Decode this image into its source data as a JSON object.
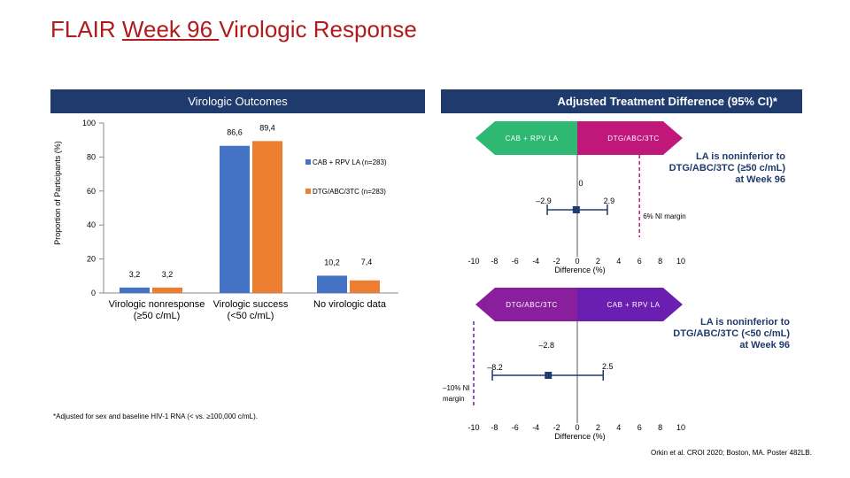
{
  "title": {
    "prefix": "FLAIR ",
    "underlined": "Week 96 ",
    "suffix": "Virologic Response"
  },
  "left_panel": {
    "header": "Virologic Outcomes"
  },
  "right_panel": {
    "header": "Adjusted Treatment Difference (95% CI)*"
  },
  "chart_data": [
    {
      "type": "bar",
      "ylabel": "Proportion of Participants (%)",
      "ylim": [
        0,
        100
      ],
      "yticks": [
        "0",
        "20",
        "40",
        "60",
        "80",
        "100"
      ],
      "categories": [
        "Virologic nonresponse (≥50 c/mL)",
        "Virologic success (<50 c/mL)",
        "No virologic data"
      ],
      "series": [
        {
          "name": "CAB + RPV LA (n=283)",
          "color": "#4472c4",
          "values": [
            3.2,
            86.6,
            10.2
          ],
          "labels": [
            "3,2",
            "86,6",
            "10,2"
          ]
        },
        {
          "name": "DTG/ABC/3TC (n=283)",
          "color": "#ed7d31",
          "values": [
            3.2,
            89.4,
            7.4
          ],
          "labels": [
            "3,2",
            "89,4",
            "7,4"
          ]
        }
      ]
    },
    {
      "type": "forest",
      "arrow_left": "CAB + RPV LA",
      "arrow_right": "DTG/ABC/3TC",
      "arrow_color": "#2eb872",
      "arrow_right_color": "#c0187a",
      "point": -0.1,
      "ci_lower": -2.9,
      "ci_upper": 2.9,
      "ci_labels": [
        "–2.9",
        "2.9"
      ],
      "ni_margin": 6,
      "ni_label": "6% NI margin",
      "zero_label": "0",
      "xticks": [
        "-10",
        "-8",
        "-6",
        "-4",
        "-2",
        "0",
        "2",
        "4",
        "6",
        "8",
        "10"
      ],
      "xlabel": "Difference (%)",
      "conclusion": "LA is noninferior to DTG/ABC/3TC (≥50 c/mL) at Week 96"
    },
    {
      "type": "forest",
      "arrow_left": "DTG/ABC/3TC",
      "arrow_right": "CAB + RPV LA",
      "arrow_color": "#8a1f9e",
      "arrow_right_color": "#6a1fb0",
      "point": -2.8,
      "ci_lower": -8.2,
      "ci_upper": 2.5,
      "ci_labels": [
        "–8.2",
        "2.5"
      ],
      "point_label": "–2.8",
      "ni_margin": -10,
      "ni_label": "–10% NI margin",
      "xticks": [
        "-10",
        "-8",
        "-6",
        "-4",
        "-2",
        "0",
        "2",
        "4",
        "6",
        "8",
        "10"
      ],
      "xlabel": "Difference (%)",
      "conclusion": "LA is noninferior to DTG/ABC/3TC (<50 c/mL) at Week 96"
    }
  ],
  "footnote": "*Adjusted for sex and baseline HIV-1 RNA (< vs. ≥100,000 c/mL).",
  "citation": "Orkin et al. CROI 2020; Boston, MA. Poster 482LB."
}
